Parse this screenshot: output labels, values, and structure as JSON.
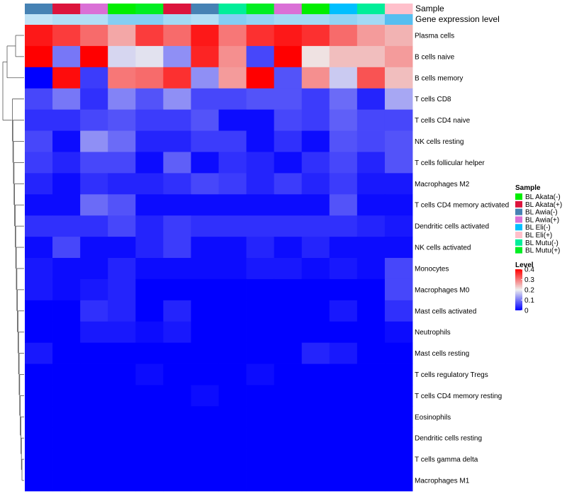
{
  "chart_data": {
    "type": "heatmap",
    "title": "",
    "annotation_tracks": [
      {
        "name": "Sample"
      },
      {
        "name": "Gene expression level"
      }
    ],
    "columns": [
      {
        "sample": "BL Awia(-)"
      },
      {
        "sample": "BL Akata(+)"
      },
      {
        "sample": "BL Awia(+)"
      },
      {
        "sample": "BL Akata(-)"
      },
      {
        "sample": "BL Mutu(+)"
      },
      {
        "sample": "BL Akata(+)"
      },
      {
        "sample": "BL Awia(-)"
      },
      {
        "sample": "BL Mutu(-)"
      },
      {
        "sample": "BL Mutu(+)"
      },
      {
        "sample": "BL Awia(+)"
      },
      {
        "sample": "BL Akata(-)"
      },
      {
        "sample": "BL Eli(-)"
      },
      {
        "sample": "BL Mutu(-)"
      },
      {
        "sample": "BL Eli(+)"
      }
    ],
    "gene_expression_level": [
      0.02,
      0.03,
      0.03,
      0.06,
      0.06,
      0.04,
      0.03,
      0.06,
      0.05,
      0.04,
      0.04,
      0.05,
      0.04,
      0.09
    ],
    "rows": [
      "Plasma cells",
      "B cells naive",
      "B cells memory",
      "T cells CD8",
      "T cells CD4 naive",
      "NK cells resting",
      "T cells follicular helper",
      "Macrophages M2",
      "T cells CD4 memory activated",
      "Dendritic cells activated",
      "NK cells activated",
      "Monocytes",
      "Macrophages M0",
      "Mast cells activated",
      "Neutrophils",
      "Mast cells resting",
      "T cells regulatory  Tregs",
      "T cells CD4 memory resting",
      "Eosinophils",
      "Dendritic cells resting",
      "T cells gamma delta",
      "Macrophages M1"
    ],
    "values": [
      [
        0.38,
        0.35,
        0.31,
        0.26,
        0.35,
        0.31,
        0.38,
        0.3,
        0.36,
        0.38,
        0.36,
        0.31,
        0.27,
        0.25
      ],
      [
        0.4,
        0.1,
        0.4,
        0.18,
        0.19,
        0.12,
        0.37,
        0.28,
        0.06,
        0.4,
        0.21,
        0.24,
        0.24,
        0.27
      ],
      [
        0.0,
        0.39,
        0.05,
        0.3,
        0.31,
        0.36,
        0.12,
        0.27,
        0.4,
        0.07,
        0.28,
        0.17,
        0.33,
        0.24
      ],
      [
        0.06,
        0.1,
        0.04,
        0.11,
        0.07,
        0.12,
        0.06,
        0.06,
        0.07,
        0.07,
        0.05,
        0.09,
        0.03,
        0.14
      ],
      [
        0.04,
        0.04,
        0.06,
        0.07,
        0.05,
        0.05,
        0.07,
        0.01,
        0.01,
        0.06,
        0.05,
        0.08,
        0.06,
        0.06
      ],
      [
        0.06,
        0.01,
        0.12,
        0.09,
        0.03,
        0.03,
        0.05,
        0.05,
        0.01,
        0.04,
        0.01,
        0.07,
        0.06,
        0.07
      ],
      [
        0.05,
        0.03,
        0.06,
        0.06,
        0.01,
        0.08,
        0.01,
        0.04,
        0.03,
        0.01,
        0.04,
        0.06,
        0.03,
        0.07
      ],
      [
        0.03,
        0.01,
        0.04,
        0.03,
        0.03,
        0.04,
        0.06,
        0.05,
        0.03,
        0.05,
        0.03,
        0.05,
        0.02,
        0.02
      ],
      [
        0.01,
        0.01,
        0.09,
        0.07,
        0.01,
        0.01,
        0.01,
        0.01,
        0.01,
        0.01,
        0.01,
        0.07,
        0.01,
        0.01
      ],
      [
        0.04,
        0.04,
        0.04,
        0.06,
        0.03,
        0.05,
        0.04,
        0.04,
        0.04,
        0.04,
        0.04,
        0.04,
        0.03,
        0.02
      ],
      [
        0.01,
        0.06,
        0.01,
        0.01,
        0.03,
        0.05,
        0.01,
        0.01,
        0.03,
        0.01,
        0.03,
        0.01,
        0.01,
        0.01
      ],
      [
        0.02,
        0.01,
        0.01,
        0.03,
        0.01,
        0.01,
        0.01,
        0.01,
        0.02,
        0.02,
        0.01,
        0.02,
        0.01,
        0.06
      ],
      [
        0.02,
        0.01,
        0.02,
        0.03,
        0.0,
        0.0,
        0.0,
        0.0,
        0.0,
        0.0,
        0.0,
        0.0,
        0.0,
        0.06
      ],
      [
        0.0,
        0.0,
        0.04,
        0.03,
        0.0,
        0.03,
        0.0,
        0.0,
        0.0,
        0.0,
        0.0,
        0.02,
        0.0,
        0.04
      ],
      [
        0.0,
        0.0,
        0.02,
        0.02,
        0.01,
        0.02,
        0.0,
        0.0,
        0.0,
        0.0,
        0.0,
        0.0,
        0.0,
        0.01
      ],
      [
        0.02,
        0.0,
        0.0,
        0.0,
        0.0,
        0.0,
        0.0,
        0.0,
        0.0,
        0.0,
        0.03,
        0.02,
        0.0,
        0.0
      ],
      [
        0.0,
        0.0,
        0.0,
        0.0,
        0.01,
        0.0,
        0.0,
        0.0,
        0.01,
        0.0,
        0.0,
        0.0,
        0.0,
        0.0
      ],
      [
        0.0,
        0.0,
        0.0,
        0.0,
        0.0,
        0.0,
        0.01,
        0.0,
        0.0,
        0.0,
        0.0,
        0.0,
        0.0,
        0.0
      ],
      [
        0.0,
        0.0,
        0.0,
        0.0,
        0.0,
        0.0,
        0.0,
        0.0,
        0.0,
        0.0,
        0.0,
        0.0,
        0.0,
        0.0
      ],
      [
        0.0,
        0.0,
        0.0,
        0.0,
        0.0,
        0.0,
        0.0,
        0.0,
        0.0,
        0.0,
        0.0,
        0.0,
        0.0,
        0.0
      ],
      [
        0.0,
        0.0,
        0.0,
        0.0,
        0.0,
        0.0,
        0.0,
        0.0,
        0.0,
        0.0,
        0.0,
        0.0,
        0.0,
        0.0
      ],
      [
        0.0,
        0.0,
        0.0,
        0.0,
        0.0,
        0.0,
        0.0,
        0.0,
        0.0,
        0.0,
        0.0,
        0.0,
        0.0,
        0.0
      ]
    ],
    "color_scale": {
      "title": "Level",
      "range": [
        0,
        0.4
      ],
      "ticks": [
        "0.4",
        "0.3",
        "0.2",
        "0.1",
        "0"
      ],
      "stops": [
        {
          "value": 0.0,
          "color": "#0000ff"
        },
        {
          "value": 0.2,
          "color": "#eeeeee"
        },
        {
          "value": 0.4,
          "color": "#ff0000"
        }
      ]
    },
    "legend": {
      "title": "Sample",
      "placement": "right",
      "entries": [
        {
          "label": "BL Akata(-)",
          "color": "#00ee00"
        },
        {
          "label": "BL Akata(+)",
          "color": "#dc143c"
        },
        {
          "label": "BL Awia(-)",
          "color": "#4682b4"
        },
        {
          "label": "BL Awia(+)",
          "color": "#da70d6"
        },
        {
          "label": "BL Eli(-)",
          "color": "#00bfff"
        },
        {
          "label": "BL Eli(+)",
          "color": "#ffc0cb"
        },
        {
          "label": "BL Mutu(-)",
          "color": "#00ee99"
        },
        {
          "label": "BL Mutu(+)",
          "color": "#00ee22"
        }
      ]
    },
    "dendrogram": {
      "side": "left",
      "clustered": "rows"
    }
  }
}
